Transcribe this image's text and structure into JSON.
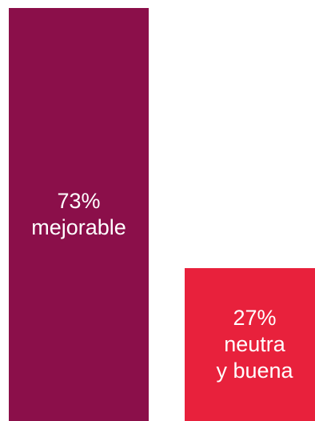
{
  "chart_data": {
    "type": "bar",
    "categories": [
      "mejorable",
      "neutra y buena"
    ],
    "values": [
      73,
      27
    ],
    "unit": "%",
    "ylim": [
      0,
      73
    ],
    "grid": false,
    "legend": "none",
    "bars": [
      {
        "value_label": "73%",
        "label_lines": [
          "mejorable"
        ],
        "color": "#8b0f4a"
      },
      {
        "value_label": "27%",
        "label_lines": [
          "neutra",
          "y buena"
        ],
        "color": "#e8213c"
      }
    ]
  }
}
